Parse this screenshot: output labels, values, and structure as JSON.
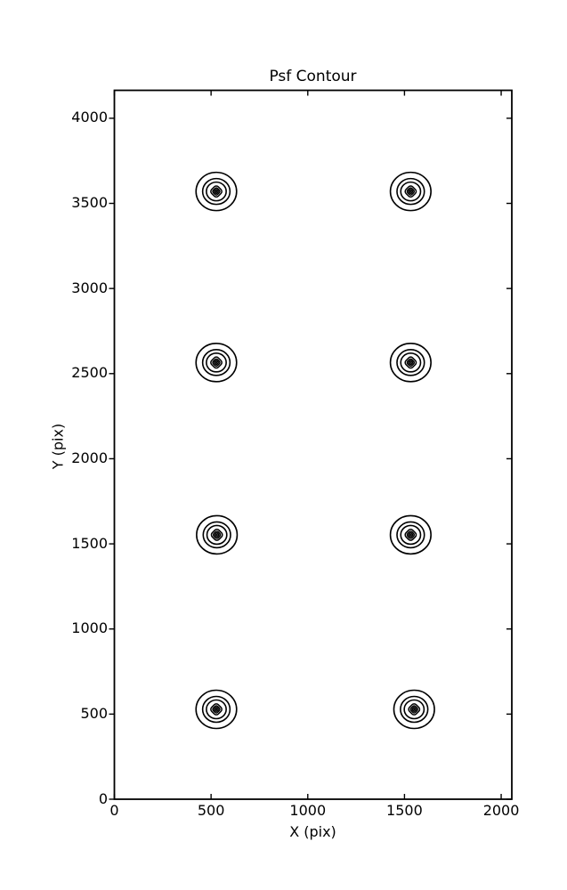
{
  "chart_data": {
    "type": "contour",
    "title": "Psf Contour",
    "xlabel": "X (pix)",
    "ylabel": "Y (pix)",
    "xlim": [
      0,
      2055
    ],
    "ylim": [
      0,
      4164
    ],
    "xticks": [
      0,
      500,
      1000,
      1500,
      2000
    ],
    "yticks": [
      0,
      500,
      1000,
      1500,
      2000,
      2500,
      3000,
      3500,
      4000
    ],
    "grid": false,
    "legend": null,
    "background_color": "#ffffff",
    "line_color": "#000000",
    "n_contour_levels": 7,
    "psf_positions": [
      {
        "x": 527,
        "y": 3570
      },
      {
        "x": 1532,
        "y": 3570
      },
      {
        "x": 527,
        "y": 2565
      },
      {
        "x": 1532,
        "y": 2565
      },
      {
        "x": 530,
        "y": 1553
      },
      {
        "x": 1532,
        "y": 1553
      },
      {
        "x": 527,
        "y": 528
      },
      {
        "x": 1550,
        "y": 528
      }
    ],
    "levels": [
      {
        "r": 21.5,
        "shape": "ellipse"
      },
      {
        "r": 14.5,
        "shape": "ellipse"
      },
      {
        "r": 10.5,
        "shape": "ellipse"
      },
      {
        "r": 7.5,
        "shape": "diamond"
      },
      {
        "r": 4.8,
        "shape": "diamond"
      },
      {
        "r": 2.6,
        "shape": "diamond"
      },
      {
        "r": 1.1,
        "shape": "dot"
      }
    ]
  }
}
